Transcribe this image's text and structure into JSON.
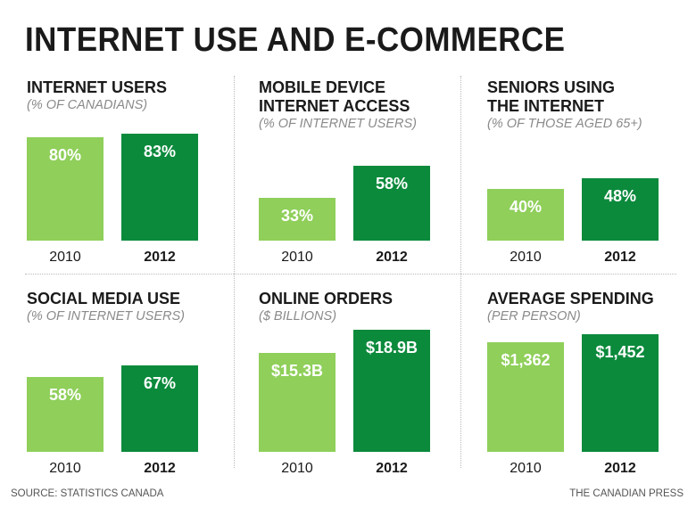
{
  "title": "INTERNET USE AND E-COMMERCE",
  "source": "SOURCE: STATISTICS CANADA",
  "credit": "THE CANADIAN PRESS",
  "colors": {
    "y2010": "#8fcf5a",
    "y2012": "#0b8a3c",
    "divider": "#b9b9b9"
  },
  "chart_data": [
    {
      "type": "bar",
      "title": "INTERNET USERS",
      "subtitle": "(% OF CANADIANS)",
      "categories": [
        "2010",
        "2012"
      ],
      "values": [
        80,
        83
      ],
      "value_labels": [
        "80%",
        "83%"
      ],
      "ylim": [
        0,
        100
      ]
    },
    {
      "type": "bar",
      "title": "MOBILE DEVICE\nINTERNET ACCESS",
      "subtitle": "(% OF INTERNET USERS)",
      "categories": [
        "2010",
        "2012"
      ],
      "values": [
        33,
        58
      ],
      "value_labels": [
        "33%",
        "58%"
      ],
      "ylim": [
        0,
        100
      ]
    },
    {
      "type": "bar",
      "title": "SENIORS USING\nTHE INTERNET",
      "subtitle": "(% OF THOSE AGED 65+)",
      "categories": [
        "2010",
        "2012"
      ],
      "values": [
        40,
        48
      ],
      "value_labels": [
        "40%",
        "48%"
      ],
      "ylim": [
        0,
        100
      ]
    },
    {
      "type": "bar",
      "title": "SOCIAL MEDIA USE",
      "subtitle": "(% OF INTERNET USERS)",
      "categories": [
        "2010",
        "2012"
      ],
      "values": [
        58,
        67
      ],
      "value_labels": [
        "58%",
        "67%"
      ],
      "ylim": [
        0,
        100
      ]
    },
    {
      "type": "bar",
      "title": "ONLINE ORDERS",
      "subtitle": "($ BILLIONS)",
      "categories": [
        "2010",
        "2012"
      ],
      "values": [
        15.3,
        18.9
      ],
      "value_labels": [
        "$15.3B",
        "$18.9B"
      ],
      "ylim": [
        0,
        20
      ]
    },
    {
      "type": "bar",
      "title": "AVERAGE SPENDING",
      "subtitle": "(PER PERSON)",
      "categories": [
        "2010",
        "2012"
      ],
      "values": [
        1362,
        1452
      ],
      "value_labels": [
        "$1,362",
        "$1,452"
      ],
      "ylim": [
        0,
        1600
      ]
    }
  ]
}
